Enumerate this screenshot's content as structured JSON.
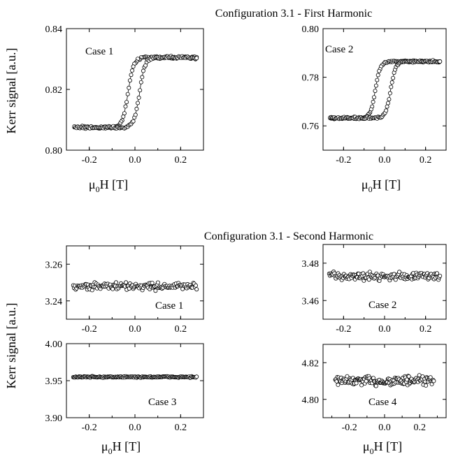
{
  "top": {
    "title": "Configuration 3.1 - First Harmonic",
    "ylabel": "Kerr signal [a.u.]",
    "xlabel_main": "μ",
    "xlabel_sub": "0",
    "xlabel_rest": "H [T]"
  },
  "bottom": {
    "title": "Configuration 3.1 - Second Harmonic",
    "ylabel": "Kerr signal [a.u.]",
    "xlabel_main": "μ",
    "xlabel_sub": "0",
    "xlabel_rest": "H [T]"
  },
  "colors": {
    "marker_fill": "#ffffff",
    "marker_stroke": "#000000",
    "line": "#000000"
  },
  "chart_data": [
    {
      "type": "scatter",
      "panel": "top-left",
      "label": "Case 1",
      "xlim": [
        -0.3,
        0.3
      ],
      "ylim": [
        0.8,
        0.84
      ],
      "xticks": [
        -0.2,
        0.0,
        0.2
      ],
      "xtick_labels": [
        "-0.2",
        "0.0",
        "0.2"
      ],
      "yticks": [
        0.8,
        0.82,
        0.84
      ],
      "ytick_labels": [
        "0.80",
        "0.82",
        "0.84"
      ],
      "hysteresis": {
        "low": 0.8075,
        "high": 0.8305,
        "coercive_up": 0.02,
        "coercive_down": -0.03,
        "width": 0.012,
        "noise": 0.0006
      },
      "series": [
        {
          "branch": "descending",
          "x": [
            0.26,
            0.2,
            0.1,
            0.05,
            0.0,
            -0.02,
            -0.03,
            -0.04,
            -0.06,
            -0.1,
            -0.2,
            -0.26
          ],
          "y": [
            0.8305,
            0.8305,
            0.8303,
            0.83,
            0.829,
            0.825,
            0.819,
            0.812,
            0.8085,
            0.8077,
            0.8075,
            0.807
          ]
        },
        {
          "branch": "ascending",
          "x": [
            -0.26,
            -0.2,
            -0.1,
            -0.05,
            0.0,
            0.01,
            0.02,
            0.03,
            0.05,
            0.1,
            0.2,
            0.27
          ],
          "y": [
            0.807,
            0.8075,
            0.8077,
            0.808,
            0.809,
            0.813,
            0.819,
            0.826,
            0.8295,
            0.8303,
            0.8305,
            0.829
          ]
        }
      ]
    },
    {
      "type": "scatter",
      "panel": "top-right",
      "label": "Case 2",
      "xlim": [
        -0.3,
        0.3
      ],
      "ylim": [
        0.75,
        0.8
      ],
      "xticks": [
        -0.2,
        0.0,
        0.2
      ],
      "xtick_labels": [
        "-0.2",
        "0.0",
        "0.2"
      ],
      "yticks": [
        0.76,
        0.78,
        0.8
      ],
      "ytick_labels": [
        "0.76",
        "0.78",
        "0.80"
      ],
      "hysteresis": {
        "low": 0.7632,
        "high": 0.7865,
        "coercive_up": 0.03,
        "coercive_down": -0.045,
        "width": 0.012,
        "noise": 0.0006
      },
      "series": [
        {
          "branch": "descending",
          "x": [
            0.26,
            0.2,
            0.1,
            0.0,
            -0.03,
            -0.045,
            -0.06,
            -0.1,
            -0.2,
            -0.26
          ],
          "y": [
            0.7865,
            0.7865,
            0.7863,
            0.786,
            0.783,
            0.775,
            0.765,
            0.7635,
            0.7632,
            0.763
          ]
        },
        {
          "branch": "ascending",
          "x": [
            -0.26,
            -0.2,
            -0.1,
            0.0,
            0.02,
            0.03,
            0.045,
            0.1,
            0.2,
            0.26
          ],
          "y": [
            0.763,
            0.7632,
            0.7634,
            0.764,
            0.769,
            0.775,
            0.784,
            0.7863,
            0.7865,
            0.7865
          ]
        }
      ]
    },
    {
      "type": "scatter",
      "panel": "bottom-case1",
      "label": "Case 1",
      "xlim": [
        -0.3,
        0.3
      ],
      "ylim": [
        3.23,
        3.27
      ],
      "xticks": [
        -0.2,
        0.0,
        0.2
      ],
      "xtick_labels": [
        "-0.2",
        "0.0",
        "0.2"
      ],
      "yticks": [
        3.24,
        3.26
      ],
      "ytick_labels": [
        "3.24",
        "3.26"
      ],
      "baseline": {
        "mean": 3.248,
        "noise": 0.003
      },
      "series": [
        {
          "name": "",
          "x": [
            -0.27,
            -0.2,
            -0.1,
            0.0,
            0.1,
            0.2,
            0.27
          ],
          "y": [
            3.248,
            3.247,
            3.246,
            3.249,
            3.25,
            3.249,
            3.248
          ]
        }
      ]
    },
    {
      "type": "scatter",
      "panel": "bottom-case2",
      "label": "Case 2",
      "xlim": [
        -0.3,
        0.3
      ],
      "ylim": [
        3.45,
        3.49
      ],
      "xticks": [
        -0.2,
        0.0,
        0.2
      ],
      "xtick_labels": [
        "-0.2",
        "0.0",
        "0.2"
      ],
      "yticks": [
        3.46,
        3.48
      ],
      "ytick_labels": [
        "3.46",
        "3.48"
      ],
      "baseline": {
        "mean": 3.473,
        "noise": 0.003
      },
      "series": [
        {
          "name": "",
          "x": [
            -0.27,
            -0.2,
            -0.1,
            0.0,
            0.1,
            0.2,
            0.27
          ],
          "y": [
            3.474,
            3.473,
            3.472,
            3.472,
            3.472,
            3.473,
            3.474
          ]
        }
      ]
    },
    {
      "type": "scatter",
      "panel": "bottom-case3",
      "label": "Case 3",
      "xlim": [
        -0.3,
        0.3
      ],
      "ylim": [
        3.9,
        4.0
      ],
      "xticks": [
        -0.2,
        0.0,
        0.2
      ],
      "xtick_labels": [
        "-0.2",
        "0.0",
        "0.2"
      ],
      "yticks": [
        3.9,
        3.95,
        4.0
      ],
      "ytick_labels": [
        "3.90",
        "3.95",
        "4.00"
      ],
      "baseline": {
        "mean": 3.955,
        "noise": 0.0015
      },
      "series": [
        {
          "name": "",
          "x": [
            -0.27,
            -0.2,
            -0.1,
            0.0,
            0.1,
            0.2,
            0.27
          ],
          "y": [
            3.956,
            3.955,
            3.955,
            3.954,
            3.954,
            3.954,
            3.954
          ]
        }
      ]
    },
    {
      "type": "scatter",
      "panel": "bottom-case4",
      "label": "Case 4",
      "xlim": [
        -0.35,
        0.35
      ],
      "ylim": [
        4.79,
        4.83
      ],
      "xticks": [
        -0.2,
        0.0,
        0.2
      ],
      "xtick_labels": [
        "-0.2",
        "0.0",
        "0.2"
      ],
      "yticks": [
        4.8,
        4.82
      ],
      "ytick_labels": [
        "4.80",
        "4.82"
      ],
      "baseline": {
        "mean": 4.81,
        "noise": 0.004
      },
      "series": [
        {
          "name": "",
          "x": [
            -0.28,
            -0.2,
            -0.1,
            0.0,
            0.1,
            0.2,
            0.28
          ],
          "y": [
            4.81,
            4.811,
            4.81,
            4.809,
            4.81,
            4.81,
            4.809
          ]
        }
      ]
    }
  ]
}
